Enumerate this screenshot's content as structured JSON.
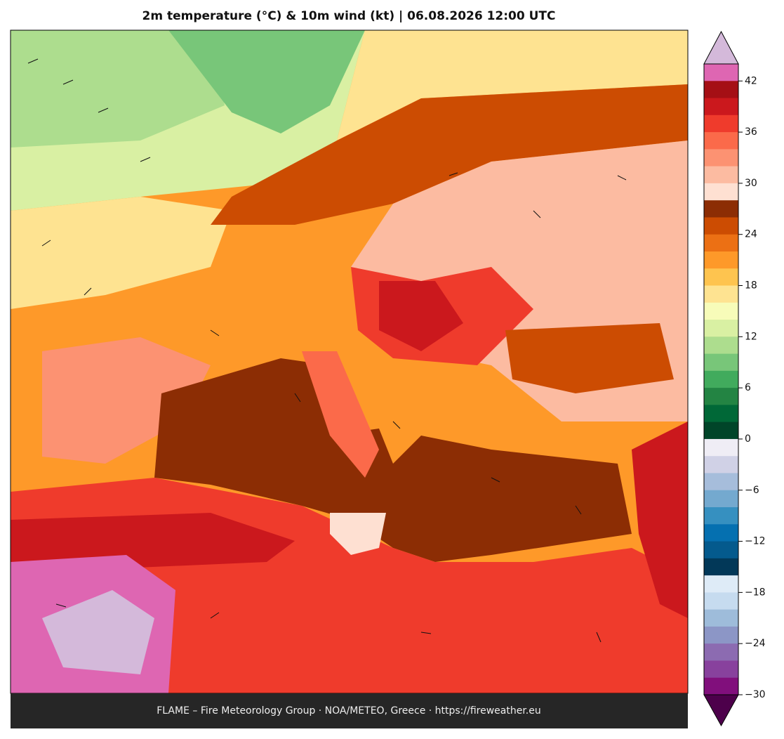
{
  "title": "2m temperature (°C) & 10m wind (kt)  |  06.08.2026 12:00 UTC",
  "footer": "FLAME – Fire Meteorology Group · NOA/METEO, Greece · https://fireweather.eu",
  "colorbar": {
    "lim": [
      -30,
      44
    ],
    "ticks": [
      42,
      36,
      30,
      24,
      18,
      12,
      6,
      0,
      {
        "value": -6,
        "label": "−6"
      },
      {
        "value": -12,
        "label": "−12"
      },
      {
        "value": -18,
        "label": "−18"
      },
      {
        "value": -24,
        "label": "−24"
      },
      {
        "value": -30,
        "label": "−30"
      }
    ],
    "colors": [
      "#de66b2",
      "#a50f15",
      "#cb181d",
      "#ef3b2c",
      "#fb6a4a",
      "#fc9272",
      "#fcbba1",
      "#fee0d2",
      "#8c2d04",
      "#cc4c02",
      "#ec7014",
      "#fe9929",
      "#fec44f",
      "#fee391",
      "#f7fcb9",
      "#d9f0a3",
      "#addd8e",
      "#78c679",
      "#41ab5d",
      "#238443",
      "#006837",
      "#004529",
      "#efedf5",
      "#d0d1e6",
      "#a6bddb",
      "#74a9cf",
      "#3690c0",
      "#0570b0",
      "#045a8d",
      "#023858",
      "#deebf7",
      "#c6dbef",
      "#9ebcda",
      "#8c96c6",
      "#8c6bb1",
      "#88419d",
      "#810f7c"
    ],
    "over_color": "#d4b9da",
    "under_color": "#4d004b"
  }
}
